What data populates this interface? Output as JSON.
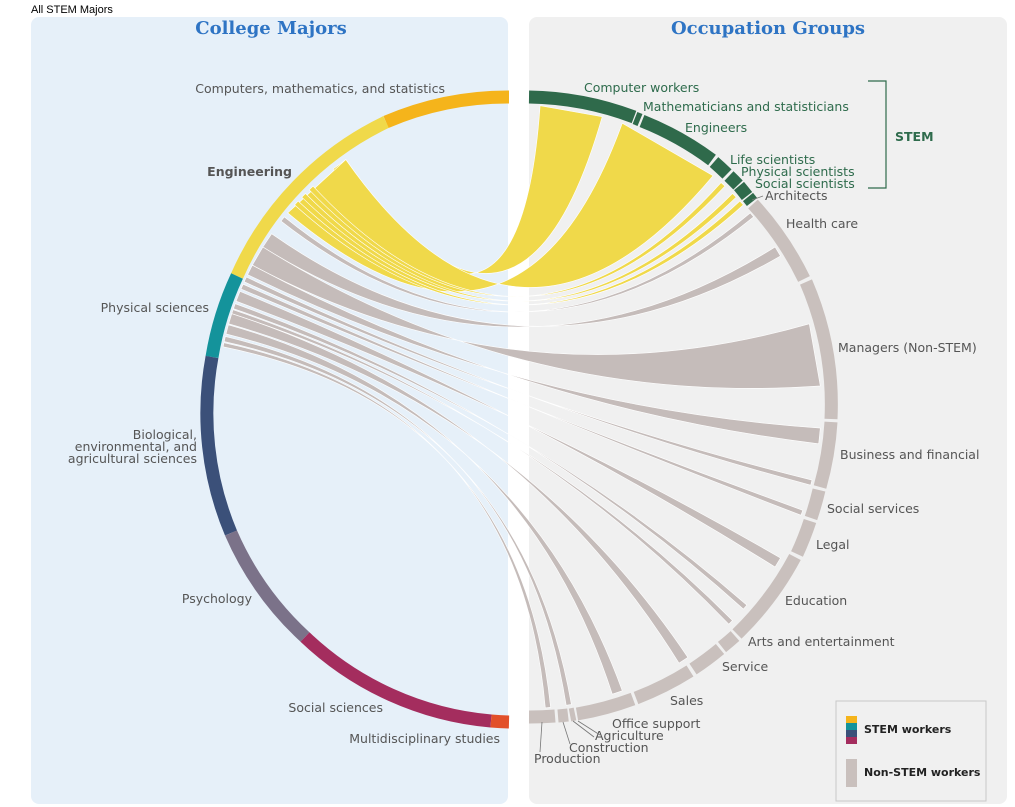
{
  "page": {
    "top_label": "All STEM Majors"
  },
  "headers": {
    "left": "College Majors",
    "right": "Occupation Groups"
  },
  "stem_bracket_label": "STEM",
  "majors": [
    {
      "label": "Computers, mathematics, and statistics",
      "color": "#f5b41b",
      "bold": false
    },
    {
      "label": "Engineering",
      "color": "#f0d94a",
      "bold": true
    },
    {
      "label": "Physical sciences",
      "color": "#14939b",
      "bold": false
    },
    {
      "label_lines": [
        "Biological,",
        "environmental, and",
        "agricultural  sciences"
      ],
      "color": "#3b5079",
      "bold": false
    },
    {
      "label": "Psychology",
      "color": "#7b7289",
      "bold": false
    },
    {
      "label": "Social sciences",
      "color": "#a42d5e",
      "bold": false
    },
    {
      "label": "Multidisciplinary studies",
      "color": "#e2502a",
      "bold": false
    }
  ],
  "occupations": [
    {
      "label": "Computer workers",
      "stem": true
    },
    {
      "label": "Mathematicians and statisticians",
      "stem": true
    },
    {
      "label": "Engineers",
      "stem": true
    },
    {
      "label": "Life scientists",
      "stem": true
    },
    {
      "label": "Physical scientists",
      "stem": true
    },
    {
      "label": "Social scientists",
      "stem": true
    },
    {
      "label": "Architects",
      "stem": false
    },
    {
      "label": "Health care",
      "stem": false
    },
    {
      "label": "Managers (Non-STEM)",
      "stem": false
    },
    {
      "label": "Business and financial",
      "stem": false
    },
    {
      "label": "Social services",
      "stem": false
    },
    {
      "label": "Legal",
      "stem": false
    },
    {
      "label": "Education",
      "stem": false
    },
    {
      "label": "Arts and entertainment",
      "stem": false
    },
    {
      "label": "Service",
      "stem": false
    },
    {
      "label": "Sales",
      "stem": false
    },
    {
      "label": "Office support",
      "stem": false
    },
    {
      "label": "Agriculture",
      "stem": false
    },
    {
      "label": "Construction",
      "stem": false
    },
    {
      "label": "Production",
      "stem": false
    }
  ],
  "colors": {
    "stem_occupation_arc": "#2f6a4b",
    "non_stem_arc": "#c9c0bd",
    "stem_flow": "#f0d94a",
    "non_stem_flow": "#c5bcba",
    "left_panel": "#e6f0f9",
    "right_panel": "#f0f0f0",
    "header": "#2e74c4"
  },
  "legend": {
    "stem_label": "STEM workers",
    "non_stem_label": "Non-STEM workers",
    "stem_swatches": [
      "#f5b41b",
      "#14939b",
      "#3b5079",
      "#a42d5e"
    ],
    "non_stem_swatch": "#c9c0bd"
  }
}
